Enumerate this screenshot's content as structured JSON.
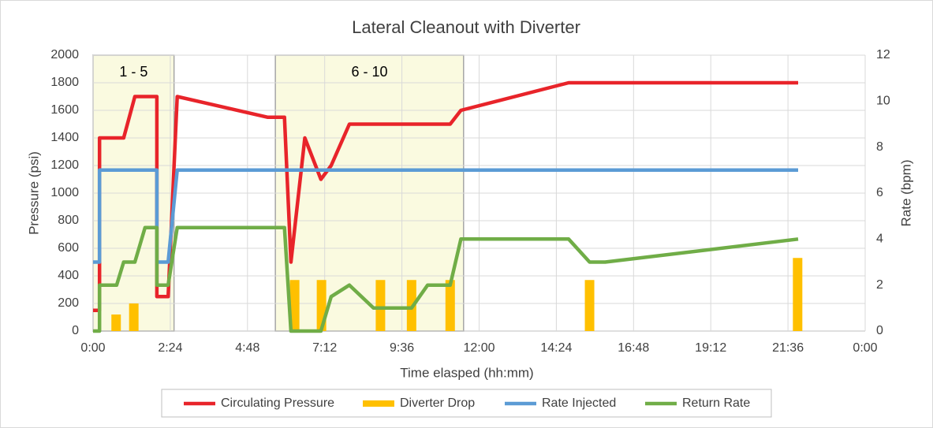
{
  "chart_data": {
    "type": "line",
    "title": "Lateral Cleanout with Diverter",
    "x_label": "Time elasped (hh:mm)",
    "y_label": "Pressure (psi)",
    "y2_label": "Rate (bpm)",
    "xlim": [
      0,
      1440
    ],
    "xticks": [
      {
        "value": 0,
        "label": "0:00"
      },
      {
        "value": 144,
        "label": "2:24"
      },
      {
        "value": 288,
        "label": "4:48"
      },
      {
        "value": 432,
        "label": "7:12"
      },
      {
        "value": 576,
        "label": "9:36"
      },
      {
        "value": 720,
        "label": "12:00"
      },
      {
        "value": 864,
        "label": "14:24"
      },
      {
        "value": 1008,
        "label": "16:48"
      },
      {
        "value": 1152,
        "label": "19:12"
      },
      {
        "value": 1296,
        "label": "21:36"
      },
      {
        "value": 1440,
        "label": "0:00"
      }
    ],
    "ylim": [
      0,
      2000
    ],
    "yticks": [
      0,
      200,
      400,
      600,
      800,
      1000,
      1200,
      1400,
      1600,
      1800,
      2000
    ],
    "y2lim": [
      0,
      12
    ],
    "y2ticks": [
      0,
      2,
      4,
      6,
      8,
      10,
      12
    ],
    "grid": true,
    "legend": "bottom",
    "regions": [
      {
        "label": "1 - 5",
        "x": [
          0,
          151
        ]
      },
      {
        "label": "6 - 10",
        "x": [
          340,
          691
        ]
      }
    ],
    "series": [
      {
        "name": "Circulating Pressure",
        "type": "line",
        "color": "#e8242a",
        "x": [
          0,
          12,
          12,
          57,
          78,
          119,
          119,
          140,
          157,
          326,
          357,
          369,
          395,
          425,
          444,
          478,
          666,
          686,
          887,
          1315
        ],
        "values": [
          150,
          150,
          1400,
          1400,
          1700,
          1700,
          250,
          250,
          1700,
          1550,
          1550,
          500,
          1400,
          1100,
          1200,
          1500,
          1500,
          1600,
          1800,
          1800
        ]
      },
      {
        "name": "Diverter Drop",
        "type": "bar",
        "color": "#ffc000",
        "x": [
          43,
          76,
          376,
          426,
          536,
          594,
          666,
          926,
          1314
        ],
        "values": [
          120,
          200,
          370,
          370,
          370,
          370,
          370,
          370,
          530
        ]
      },
      {
        "name": "Rate Injected",
        "type": "line",
        "axis": "y2",
        "color": "#5b9bd5",
        "x": [
          0,
          12,
          12,
          119,
          119,
          140,
          157,
          1315
        ],
        "values": [
          3,
          3,
          7,
          7,
          3,
          3,
          7,
          7
        ]
      },
      {
        "name": "Return Rate",
        "type": "line",
        "axis": "y2",
        "color": "#70ad47",
        "x": [
          0,
          12,
          12,
          44,
          57,
          78,
          97,
          119,
          119,
          140,
          157,
          357,
          369,
          425,
          444,
          478,
          523,
          594,
          624,
          666,
          686,
          887,
          926,
          955,
          1315
        ],
        "values": [
          0,
          0,
          2,
          2,
          3,
          3,
          4.5,
          4.5,
          2,
          2,
          4.5,
          4.5,
          0,
          0,
          1.5,
          2,
          1,
          1,
          2,
          2,
          4,
          4,
          3,
          3,
          4
        ]
      }
    ]
  }
}
